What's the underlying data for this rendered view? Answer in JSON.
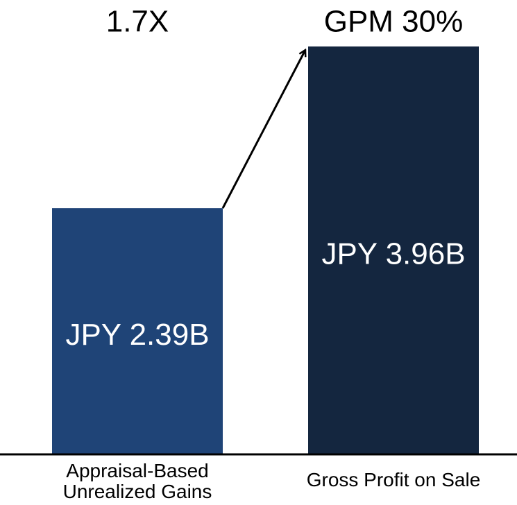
{
  "chart_data": {
    "type": "bar",
    "categories": [
      "Appraisal-Based Unrealized Gains",
      "Gross Profit on Sale"
    ],
    "values": [
      2.39,
      3.96
    ],
    "value_labels": [
      "JPY 2.39B",
      "JPY 3.96B"
    ],
    "annotations": [
      "1.7X",
      "GPM 30%"
    ],
    "colors": [
      "#1f4477",
      "#14263f"
    ]
  }
}
